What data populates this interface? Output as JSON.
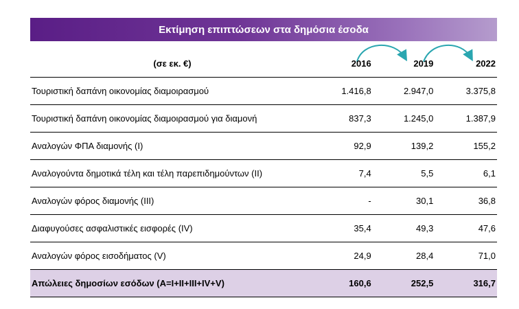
{
  "title": "Εκτίμηση επιπτώσεων στα δημόσια έσοδα",
  "colors": {
    "title_bar_start": "#5a1e86",
    "title_bar_end": "#b59ccd",
    "arrow": "#2aa6b0",
    "total_row_bg": "#ddd0e6"
  },
  "table": {
    "unit_label": "(σε εκ. €)",
    "years": [
      "2016",
      "2019",
      "2022"
    ],
    "rows": [
      {
        "label": "Τουριστική δαπάνη οικονομίας διαμοιρασμού",
        "values": [
          "1.416,8",
          "2.947,0",
          "3.375,8"
        ]
      },
      {
        "label": "Τουριστική δαπάνη οικονομίας διαμοιρασμού για διαμονή",
        "values": [
          "837,3",
          "1.245,0",
          "1.387,9"
        ]
      },
      {
        "label": "Αναλογών ΦΠΑ διαμονής (Ι)",
        "values": [
          "92,9",
          "139,2",
          "155,2"
        ]
      },
      {
        "label": "Αναλογούντα δημοτικά τέλη και τέλη παρεπιδημούντων (ΙΙ)",
        "values": [
          "7,4",
          "5,5",
          "6,1"
        ]
      },
      {
        "label": "Αναλογών φόρος διαμονής (ΙΙΙ)",
        "values": [
          "-",
          "30,1",
          "36,8"
        ]
      },
      {
        "label": "Διαφυγούσες ασφαλιστικές εισφορές (ΙV)",
        "values": [
          "35,4",
          "49,3",
          "47,6"
        ]
      },
      {
        "label": "Αναλογών φόρος εισοδήματος (V)",
        "values": [
          "24,9",
          "28,4",
          "71,0"
        ]
      }
    ],
    "total": {
      "label": "Απώλειες δημοσίων εσόδων (Α=Ι+ΙΙ+ΙΙΙ+ΙV+V)",
      "values": [
        "160,6",
        "252,5",
        "316,7"
      ]
    }
  }
}
